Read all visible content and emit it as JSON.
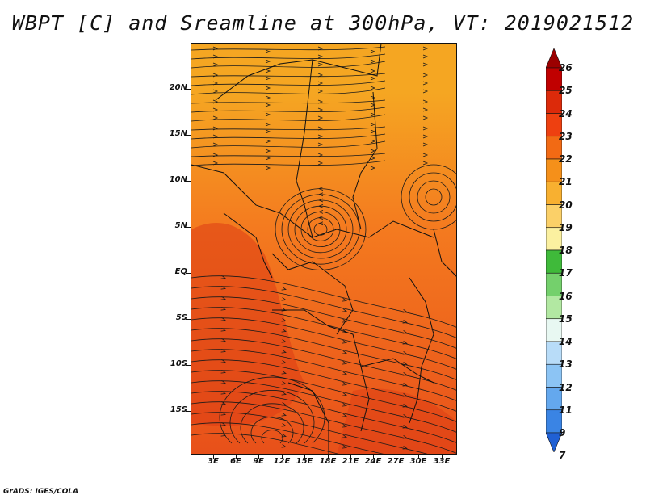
{
  "title": "WBPT [C] and Sreamline at 300hPa, VT: 2019021512",
  "credit": "GrADS: IGES/COLA",
  "map": {
    "lat_labels": [
      "20N",
      "15N",
      "10N",
      "5N",
      "EQ",
      "5S",
      "10S",
      "15S"
    ],
    "lon_labels": [
      "3E",
      "6E",
      "9E",
      "12E",
      "15E",
      "18E",
      "21E",
      "24E",
      "27E",
      "30E",
      "33E"
    ],
    "field_colors": {
      "north_band": "#f5a622",
      "mid": "#f47a1f",
      "south": "#e8501a",
      "hot": "#dc3c14"
    }
  },
  "colorbar": {
    "labels": [
      "26",
      "25",
      "24",
      "23",
      "22",
      "21",
      "20",
      "19",
      "18",
      "17",
      "16",
      "15",
      "14",
      "13",
      "12",
      "11",
      "9",
      "7"
    ],
    "colors": [
      "#9b0000",
      "#c00000",
      "#dc2a0a",
      "#ee4010",
      "#f26a14",
      "#f5901a",
      "#f8b030",
      "#fbd068",
      "#fbf0a0",
      "#3fba3a",
      "#74d06c",
      "#b2e8a2",
      "#e8f8f2",
      "#b8dcf8",
      "#8cc4f4",
      "#64a8ee",
      "#3a84e4",
      "#2060d4"
    ]
  }
}
